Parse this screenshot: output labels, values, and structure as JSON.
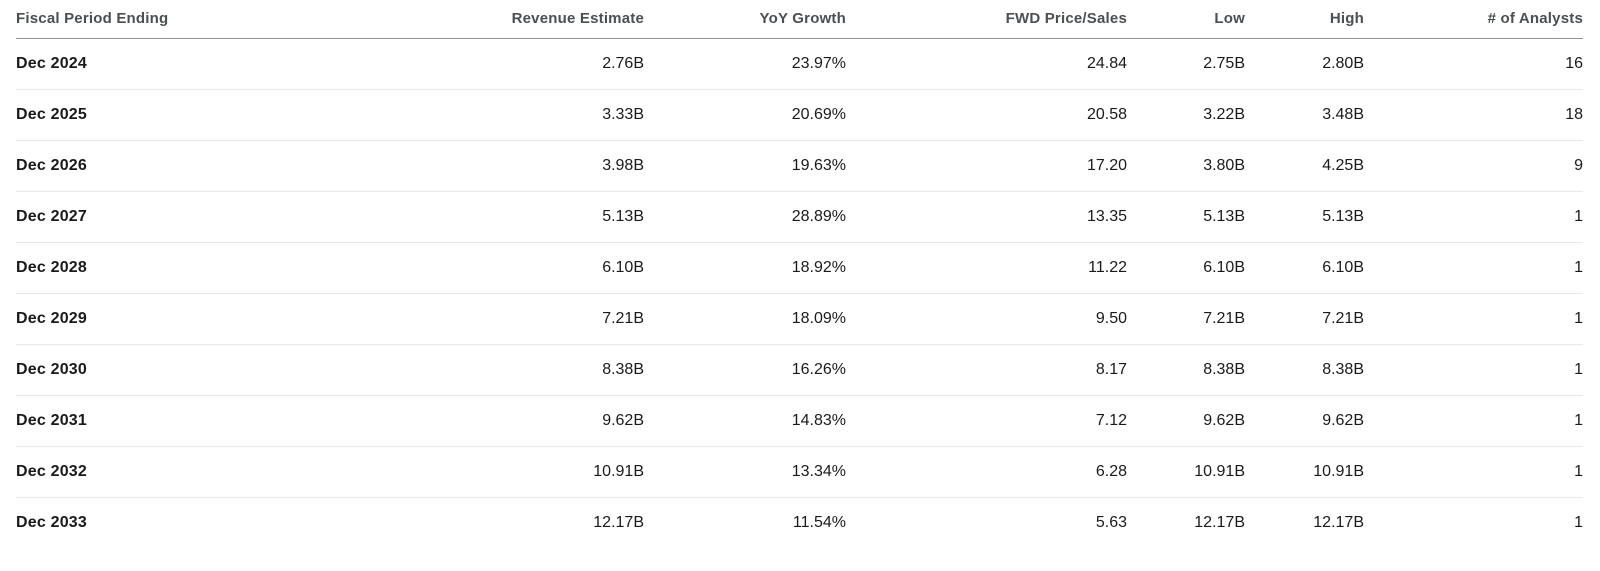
{
  "table": {
    "columns": [
      {
        "id": "fiscal-period-ending",
        "label": "Fiscal Period Ending",
        "align": "left"
      },
      {
        "id": "revenue-estimate",
        "label": "Revenue Estimate",
        "align": "right"
      },
      {
        "id": "yoy-growth",
        "label": "YoY Growth",
        "align": "right"
      },
      {
        "id": "fwd-price-sales",
        "label": "FWD Price/Sales",
        "align": "right"
      },
      {
        "id": "low",
        "label": "Low",
        "align": "right"
      },
      {
        "id": "high",
        "label": "High",
        "align": "right"
      },
      {
        "id": "num-analysts",
        "label": "# of Analysts",
        "align": "right"
      }
    ],
    "rows": [
      [
        "Dec 2024",
        "2.76B",
        "23.97%",
        "24.84",
        "2.75B",
        "2.80B",
        "16"
      ],
      [
        "Dec 2025",
        "3.33B",
        "20.69%",
        "20.58",
        "3.22B",
        "3.48B",
        "18"
      ],
      [
        "Dec 2026",
        "3.98B",
        "19.63%",
        "17.20",
        "3.80B",
        "4.25B",
        "9"
      ],
      [
        "Dec 2027",
        "5.13B",
        "28.89%",
        "13.35",
        "5.13B",
        "5.13B",
        "1"
      ],
      [
        "Dec 2028",
        "6.10B",
        "18.92%",
        "11.22",
        "6.10B",
        "6.10B",
        "1"
      ],
      [
        "Dec 2029",
        "7.21B",
        "18.09%",
        "9.50",
        "7.21B",
        "7.21B",
        "1"
      ],
      [
        "Dec 2030",
        "8.38B",
        "16.26%",
        "8.17",
        "8.38B",
        "8.38B",
        "1"
      ],
      [
        "Dec 2031",
        "9.62B",
        "14.83%",
        "7.12",
        "9.62B",
        "9.62B",
        "1"
      ],
      [
        "Dec 2032",
        "10.91B",
        "13.34%",
        "6.28",
        "10.91B",
        "10.91B",
        "1"
      ],
      [
        "Dec 2033",
        "12.17B",
        "11.54%",
        "5.63",
        "12.17B",
        "12.17B",
        "1"
      ]
    ]
  },
  "colors": {
    "background": "#ffffff",
    "header_text": "#4b4f52",
    "header_border": "#8f979a",
    "row_border": "#e8e8e8",
    "body_text": "#1a1a1a",
    "period_text": "#000000"
  }
}
